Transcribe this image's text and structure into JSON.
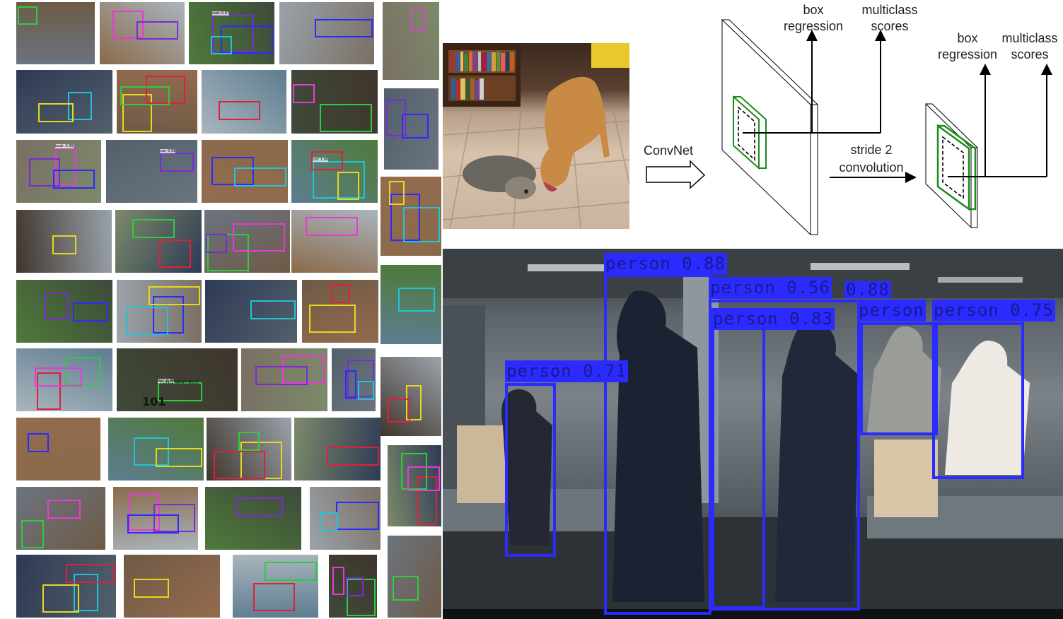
{
  "diagram": {
    "convnet_label": "ConvNet",
    "stride_label_1": "stride 2",
    "stride_label_2": "convolution",
    "head1_box_1": "box",
    "head1_box_2": "regression",
    "head1_cls_1": "multiclass",
    "head1_cls_2": "scores",
    "head2_box_1": "box",
    "head2_box_2": "regression",
    "head2_cls_1": "multiclass",
    "head2_cls_2": "scores"
  },
  "detections": {
    "d1": "person 0.88",
    "d2": "person 0.56",
    "d3": "0.88",
    "d4": "person 0.83",
    "d5": "person",
    "d6": "person 0.75",
    "d7": "person 0.71"
  },
  "thumb_tags": {
    "cow": "cow: 0.97",
    "boat": "boat: 0.95",
    "car": "car: 0.99",
    "bus": "bus: 0.99",
    "cat": "cat: 1.00",
    "sign": "YUNG WAH BUS",
    "number": "101"
  },
  "colors": {
    "box_blue": "#2b2bff",
    "box_green": "#2ecc40",
    "box_magenta": "#e83ad6",
    "box_purple": "#7a2bd6",
    "box_cyan": "#21c3d6",
    "box_yellow": "#e6d71f",
    "box_red": "#e0203a"
  }
}
